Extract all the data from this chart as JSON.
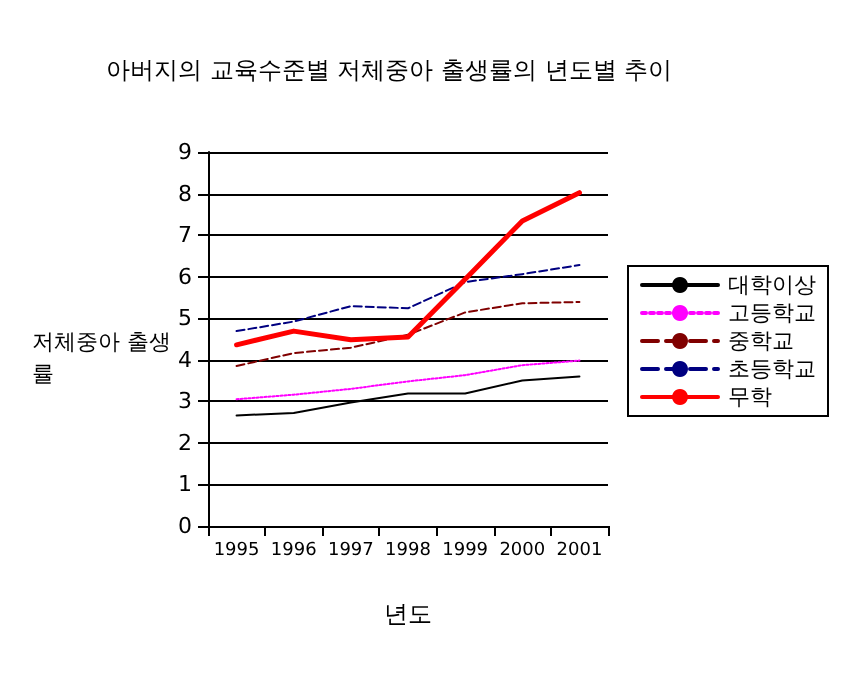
{
  "chart_data": {
    "type": "line",
    "title": "아버지의 교육수준별 저체중아 출생률의 년도별 추이",
    "xlabel": "년도",
    "ylabel": "저체중아 출생률",
    "categories": [
      "1995",
      "1996",
      "1997",
      "1998",
      "1999",
      "2000",
      "2001"
    ],
    "series": [
      {
        "name": "대학이상",
        "color": "#000000",
        "line_style": "solid",
        "values": [
          2.66,
          2.72,
          2.97,
          3.19,
          3.19,
          3.5,
          3.6
        ]
      },
      {
        "name": "고등학교",
        "color": "#ff00ff",
        "line_style": "dotted",
        "values": [
          3.05,
          3.16,
          3.3,
          3.48,
          3.63,
          3.87,
          3.98
        ]
      },
      {
        "name": "중학교",
        "color": "#800000",
        "line_style": "dashed",
        "values": [
          3.85,
          4.16,
          4.29,
          4.6,
          5.14,
          5.36,
          5.39
        ]
      },
      {
        "name": "초등학교",
        "color": "#000080",
        "line_style": "dashed",
        "values": [
          4.69,
          4.92,
          5.29,
          5.24,
          5.87,
          6.06,
          6.28
        ]
      },
      {
        "name": "무학",
        "color": "#ff0000",
        "line_style": "solid",
        "values": [
          4.36,
          4.69,
          4.48,
          4.55,
          5.94,
          7.34,
          8.02
        ]
      }
    ],
    "ylim": [
      0,
      9
    ],
    "yticks": [
      0,
      1,
      2,
      3,
      4,
      5,
      6,
      7,
      8,
      9
    ],
    "grid": "y",
    "legend": "right",
    "marker": "none"
  }
}
